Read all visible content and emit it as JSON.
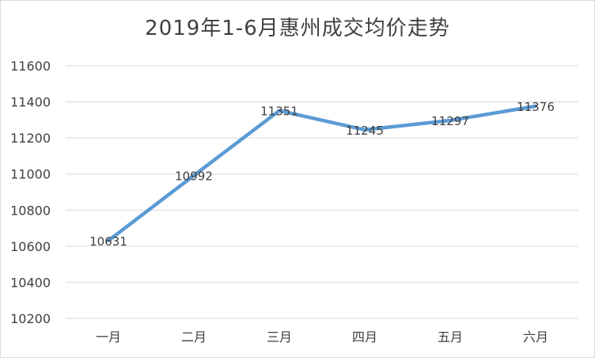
{
  "chart_data": {
    "type": "line",
    "title": "2019年1-6月惠州成交均价走势",
    "xlabel": "",
    "ylabel": "",
    "categories": [
      "一月",
      "二月",
      "三月",
      "四月",
      "五月",
      "六月"
    ],
    "series": [
      {
        "values": [
          10631,
          10992,
          11351,
          11245,
          11297,
          11376
        ],
        "color": "#5b9bd5"
      }
    ],
    "data_labels": [
      "10631",
      "10992",
      "11351",
      "11245",
      "11297",
      "11376"
    ],
    "ylim": [
      10200,
      11600
    ],
    "yticks": [
      10200,
      10400,
      10600,
      10800,
      11000,
      11200,
      11400,
      11600
    ],
    "ytick_labels": [
      "10200",
      "10400",
      "10600",
      "10800",
      "11000",
      "11200",
      "11400",
      "11600"
    ],
    "grid": true,
    "legend": "none"
  }
}
